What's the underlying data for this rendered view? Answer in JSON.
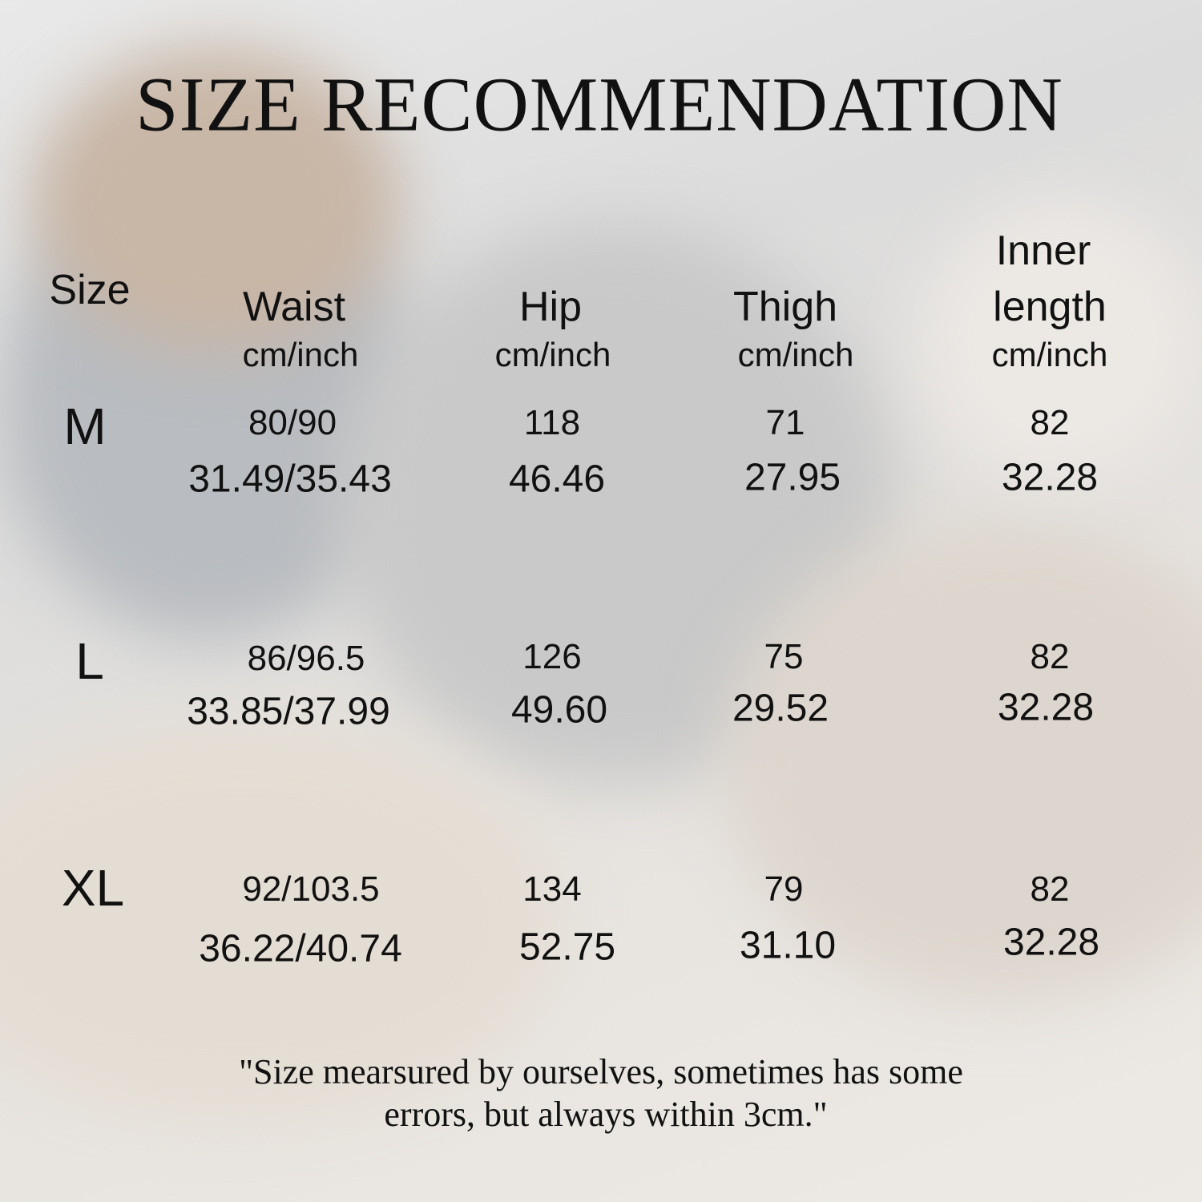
{
  "title": "SIZE RECOMMENDATION",
  "table": {
    "headers": [
      {
        "lines": [
          "Size"
        ],
        "unit": ""
      },
      {
        "lines": [
          "Waist"
        ],
        "unit": "cm/inch"
      },
      {
        "lines": [
          "Hip"
        ],
        "unit": "cm/inch"
      },
      {
        "lines": [
          "Thigh"
        ],
        "unit": "cm/inch"
      },
      {
        "lines": [
          "Inner",
          "length"
        ],
        "unit": "cm/inch"
      }
    ],
    "rows": [
      {
        "size": "M",
        "waist": {
          "cm": "80/90",
          "inch": "31.49/35.43"
        },
        "hip": {
          "cm": "118",
          "inch": "46.46"
        },
        "thigh": {
          "cm": "71",
          "inch": "27.95"
        },
        "inner_length": {
          "cm": "82",
          "inch": "32.28"
        }
      },
      {
        "size": "L",
        "waist": {
          "cm": "86/96.5",
          "inch": "33.85/37.99"
        },
        "hip": {
          "cm": "126",
          "inch": "49.60"
        },
        "thigh": {
          "cm": "75",
          "inch": "29.52"
        },
        "inner_length": {
          "cm": "82",
          "inch": "32.28"
        }
      },
      {
        "size": "XL",
        "waist": {
          "cm": "92/103.5",
          "inch": "36.22/40.74"
        },
        "hip": {
          "cm": "134",
          "inch": "52.75"
        },
        "thigh": {
          "cm": "79",
          "inch": "31.10"
        },
        "inner_length": {
          "cm": "82",
          "inch": "32.28"
        }
      }
    ]
  },
  "note": {
    "line1": "\"Size mearsured by ourselves, sometimes has some",
    "line2": "errors, but always within 3cm.\""
  }
}
